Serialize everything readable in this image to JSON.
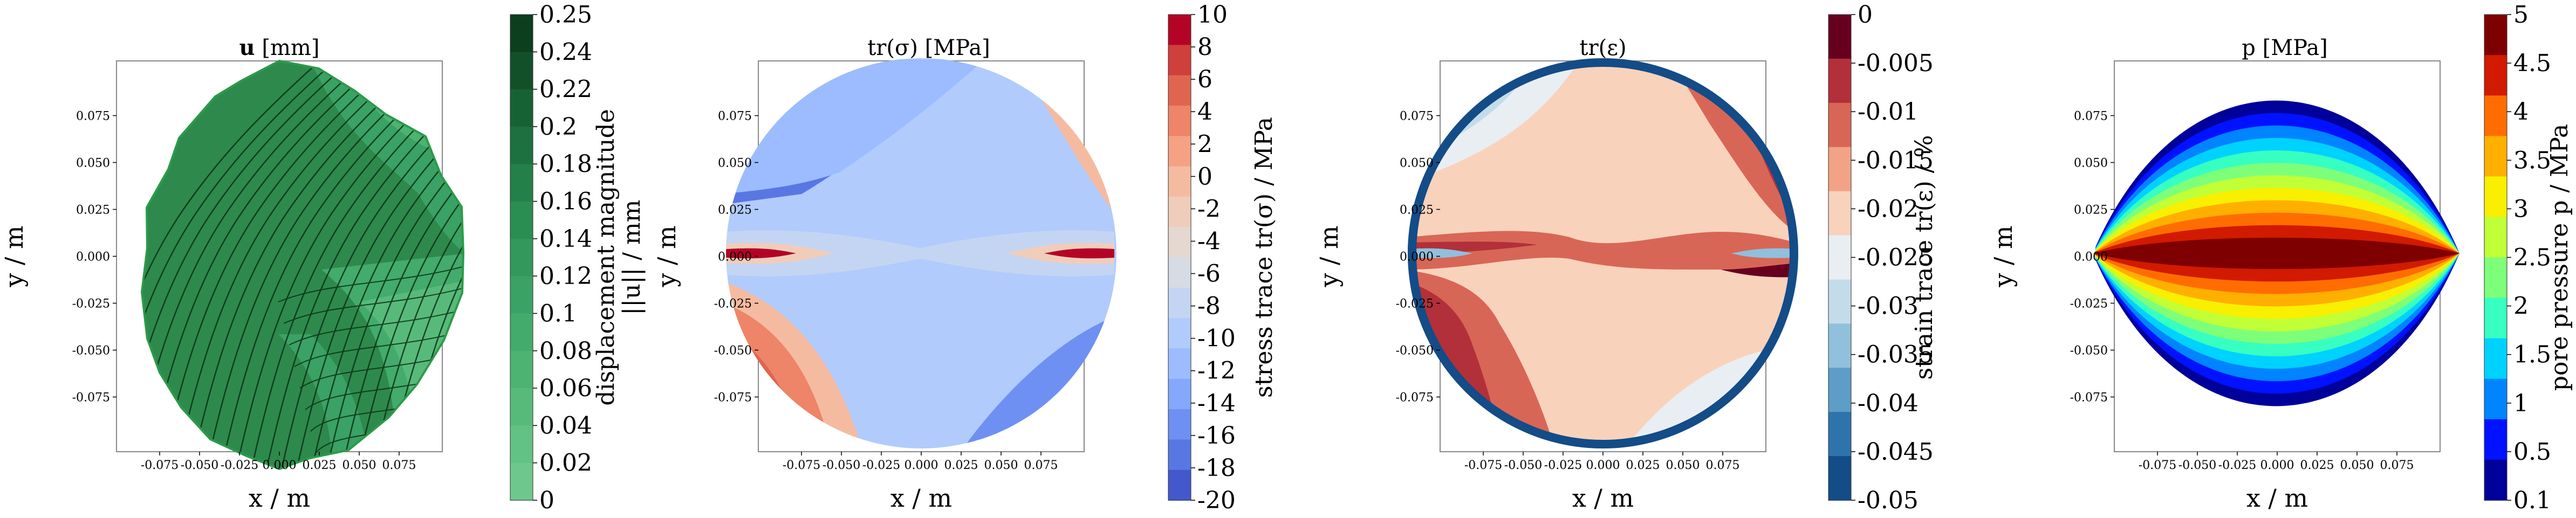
{
  "chart_data": [
    {
      "type": "contour",
      "title_bold": "u",
      "title_rest": " [mm]",
      "xlabel": "x / m",
      "ylabel": "y / m",
      "xticks": [
        "-0.075",
        "-0.050",
        "-0.025",
        "0.000",
        "0.025",
        "0.050",
        "0.075"
      ],
      "yticks": [
        "0.075",
        "0.050",
        "0.025",
        "0.000",
        "-0.025",
        "-0.050",
        "-0.075"
      ],
      "colorbar": {
        "label": "displacement magnitude",
        "label2": "||u|| / mm",
        "ticks": [
          "0.25",
          "0.24",
          "0.22",
          "0.2",
          "0.18",
          "0.16",
          "0.14",
          "0.12",
          "0.1",
          "0.08",
          "0.06",
          "0.04",
          "0.02",
          "0"
        ],
        "colors": [
          "#0c3f1d",
          "#12502a",
          "#176235",
          "#1d7140",
          "#238049",
          "#2a8d52",
          "#32985b",
          "#3aa264",
          "#43ab6b",
          "#4cb373",
          "#57ba7b",
          "#62c184",
          "#6ec78d"
        ],
        "range": [
          0,
          0.25
        ]
      },
      "field": {
        "base": "#2d8a4c",
        "regions": [
          {
            "level": 0.08,
            "color": "#57ba7b"
          },
          {
            "level": 0.06,
            "color": "#6ec78d"
          },
          {
            "level": 0.12,
            "color": "#43ab6b"
          }
        ]
      }
    },
    {
      "type": "contour",
      "title": "tr(σ) [MPa]",
      "xlabel": "x / m",
      "ylabel": "y / m",
      "xticks": [
        "-0.075",
        "-0.050",
        "-0.025",
        "0.000",
        "0.025",
        "0.050",
        "0.075"
      ],
      "yticks": [
        "0.075",
        "0.050",
        "0.025",
        "0.000",
        "-0.025",
        "-0.050",
        "-0.075"
      ],
      "colorbar": {
        "label": "stress trace tr(σ) / MPa",
        "ticks": [
          "10",
          "8",
          "6",
          "4",
          "2",
          "0",
          "-2",
          "-4",
          "-6",
          "-8",
          "-10",
          "-12",
          "-14",
          "-16",
          "-18",
          "-20"
        ],
        "colors": [
          "#b40426",
          "#cf3f3b",
          "#e0654f",
          "#ee8468",
          "#f4a283",
          "#f5bba1",
          "#f0cdbb",
          "#e4d8d1",
          "#d6dce4",
          "#c4d5f3",
          "#b1cbfc",
          "#9cbcff",
          "#85a8fc",
          "#6e90f2",
          "#5977e3",
          "#4358cb"
        ],
        "range": [
          -20,
          10
        ]
      }
    },
    {
      "type": "contour",
      "title": "tr(ε)",
      "xlabel": "x / m",
      "ylabel": "y / m",
      "xticks": [
        "-0.075",
        "-0.050",
        "-0.025",
        "0.000",
        "0.025",
        "0.050",
        "0.075"
      ],
      "yticks": [
        "0.075",
        "0.050",
        "0.025",
        "0.000",
        "-0.025",
        "-0.050",
        "-0.075"
      ],
      "colorbar": {
        "label": "strain trace tr(ε) / %",
        "ticks": [
          "0",
          "-0.005",
          "-0.01",
          "-0.015",
          "-0.02",
          "-0.025",
          "-0.03",
          "-0.035",
          "-0.04",
          "-0.045",
          "-0.05"
        ],
        "colors": [
          "#67001f",
          "#b2303a",
          "#d86656",
          "#f2a385",
          "#f9d2bc",
          "#e9eef2",
          "#c4dcea",
          "#90c0dc",
          "#5d9dc8",
          "#2f73ad",
          "#134c87"
        ],
        "range": [
          -0.05,
          0
        ]
      }
    },
    {
      "type": "contour",
      "title": "p [MPa]",
      "xlabel": "x / m",
      "ylabel": "y / m",
      "xticks": [
        "-0.075",
        "-0.050",
        "-0.025",
        "0.000",
        "0.025",
        "0.050",
        "0.075"
      ],
      "yticks": [
        "0.075",
        "0.050",
        "0.025",
        "0.000",
        "-0.025",
        "-0.050",
        "-0.075"
      ],
      "colorbar": {
        "label": "pore pressure p / MPa",
        "ticks": [
          "5",
          "4.5",
          "4",
          "3.5",
          "3",
          "2.5",
          "2",
          "1.5",
          "1",
          "0.5",
          "0.1"
        ],
        "colors": [
          "#7f0000",
          "#d11a00",
          "#ff6d00",
          "#ffaf00",
          "#f8f000",
          "#c1ff36",
          "#7dff7a",
          "#36ffc1",
          "#00d2ff",
          "#0084ff",
          "#0012ff",
          "#00009a"
        ],
        "range": [
          0.1,
          5
        ],
        "extra_label": "3.5"
      }
    }
  ]
}
